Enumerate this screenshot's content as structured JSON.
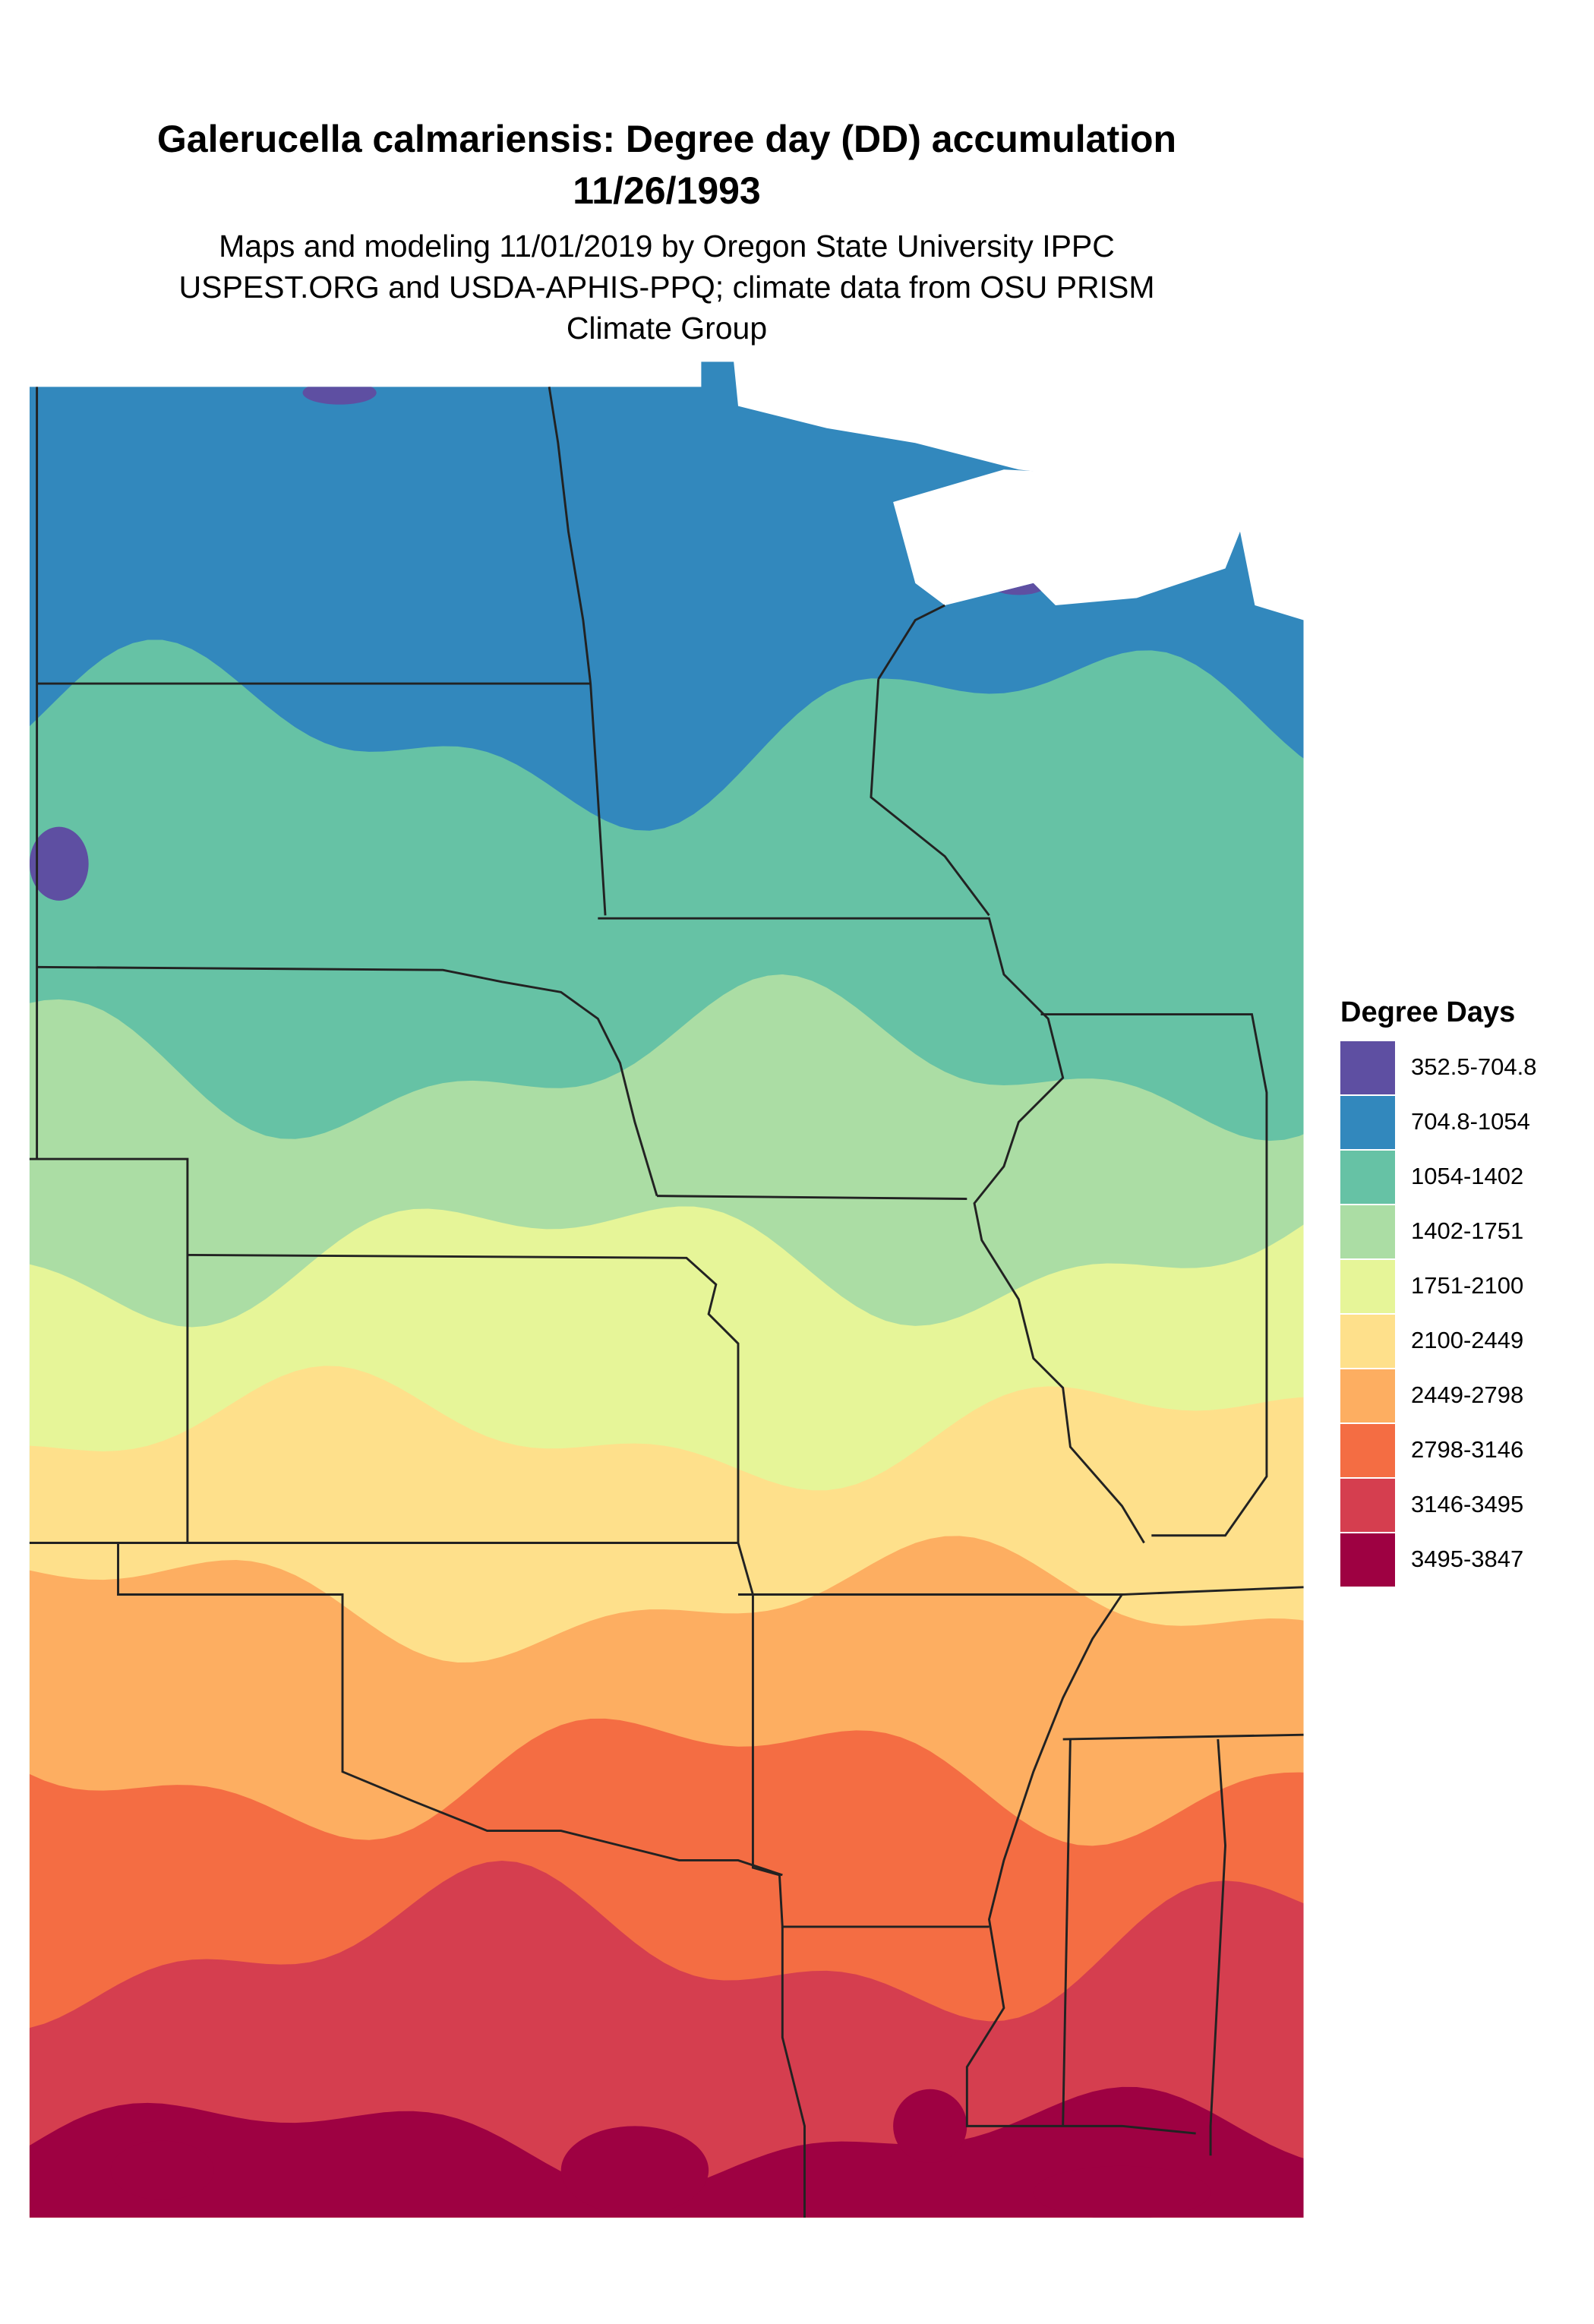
{
  "header": {
    "title": "Galerucella calmariensis: Degree day (DD) accumulation",
    "date": "11/26/1993",
    "subtitle": [
      "Maps and modeling 11/01/2019 by Oregon State University IPPC",
      "USPEST.ORG and USDA-APHIS-PPQ; climate data from OSU PRISM",
      "Climate Group"
    ]
  },
  "legend": {
    "title": "Degree Days",
    "items": [
      {
        "label": "352.5-704.8",
        "color": "#5e4fa2"
      },
      {
        "label": "704.8-1054",
        "color": "#3288bd"
      },
      {
        "label": "1054-1402",
        "color": "#66c2a5"
      },
      {
        "label": "1402-1751",
        "color": "#abdda4"
      },
      {
        "label": "1751-2100",
        "color": "#e6f598"
      },
      {
        "label": "2100-2449",
        "color": "#fee08b"
      },
      {
        "label": "2449-2798",
        "color": "#fdae61"
      },
      {
        "label": "2798-3146",
        "color": "#f46d43"
      },
      {
        "label": "3146-3495",
        "color": "#d53e4f"
      },
      {
        "label": "3495-3847",
        "color": "#9e0142"
      }
    ]
  }
}
